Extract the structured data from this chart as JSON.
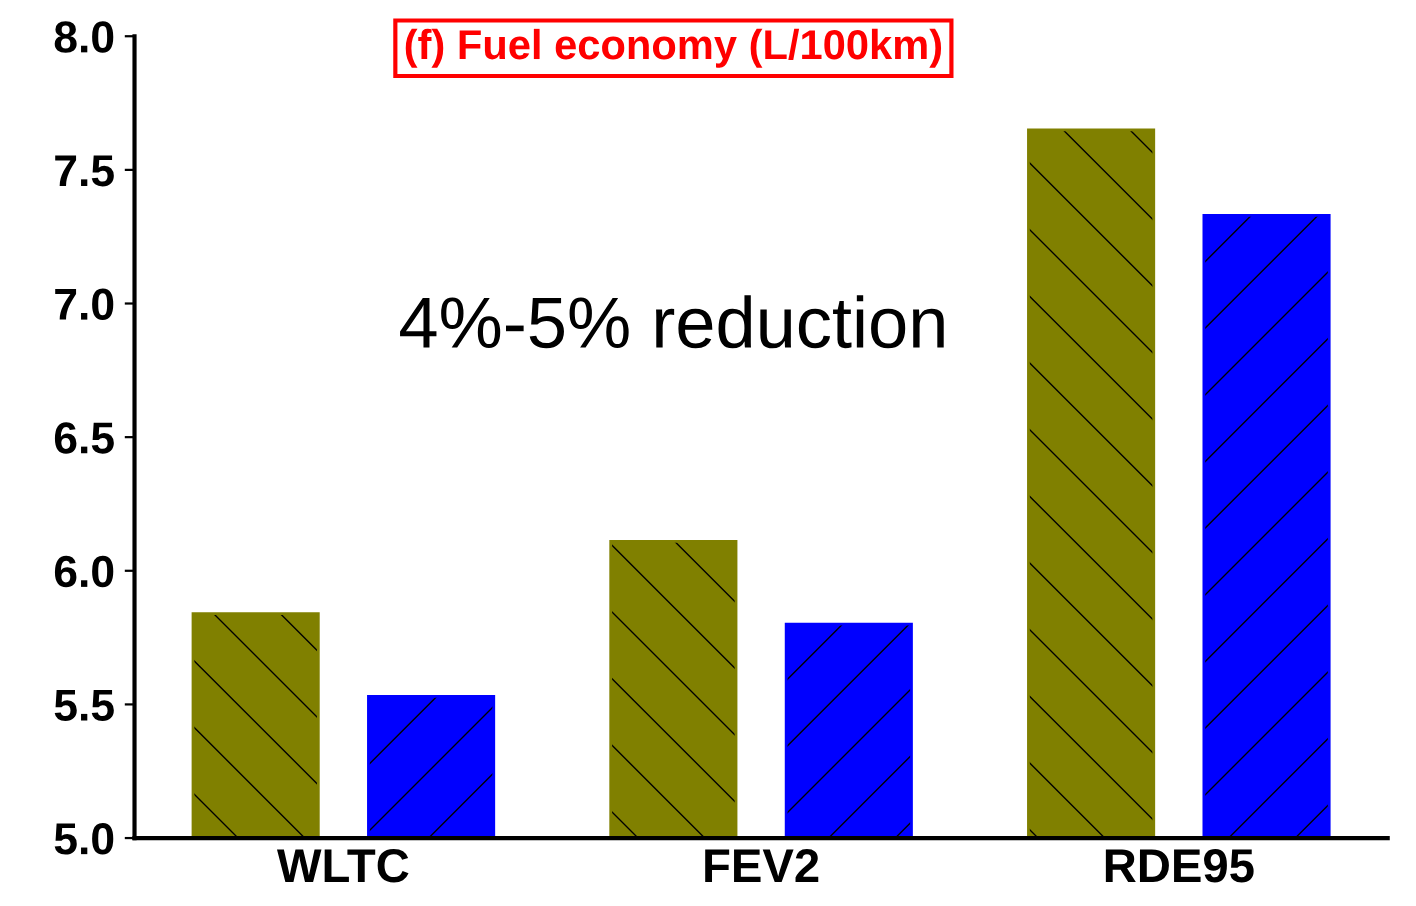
{
  "chart_data": {
    "type": "bar",
    "title": "(f) Fuel economy (L/100km)",
    "categories": [
      "WLTC",
      "FEV2",
      "RDE95"
    ],
    "series": [
      {
        "color": "#808000",
        "values": [
          5.84,
          6.11,
          7.65
        ]
      },
      {
        "color": "#0000ff",
        "values": [
          5.53,
          5.8,
          7.33
        ]
      }
    ],
    "ylim": [
      5.0,
      8.0
    ],
    "yticks": [
      {
        "value": 5,
        "label": "5.0"
      },
      5.5,
      {
        "value": 6,
        "label": "6.0"
      },
      6.5,
      {
        "value": 7,
        "label": "7.0"
      },
      7.5,
      {
        "value": 8,
        "label": "8.0"
      }
    ],
    "annotations": [
      "4%-5% reduction"
    ],
    "grid": false,
    "legend": false
  }
}
